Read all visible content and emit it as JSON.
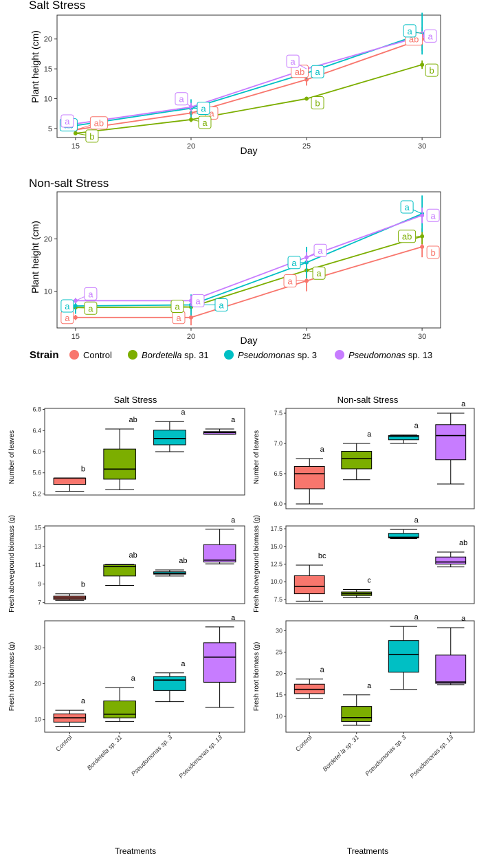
{
  "chart_data": [
    {
      "type": "line",
      "title": "Salt Stress",
      "xlabel": "Day",
      "ylabel": "Plant height (cm)",
      "xlim": [
        14.2,
        30.8
      ],
      "ylim": [
        3.5,
        24
      ],
      "xticks": [
        15,
        20,
        25,
        30
      ],
      "yticks": [
        5,
        10,
        15,
        20
      ],
      "series": [
        {
          "name": "Control",
          "color": "#F8766D",
          "x": [
            15,
            20,
            25,
            30
          ],
          "values": [
            4.8,
            7.6,
            13.2,
            20.0
          ],
          "err": [
            0.3,
            0.6,
            1.0,
            2.0
          ],
          "labels": [
            "ab",
            "a",
            "ab",
            "ab"
          ]
        },
        {
          "name": "Bordetella sp. 31",
          "color": "#7CAE00",
          "x": [
            15,
            20,
            25,
            30
          ],
          "values": [
            4.2,
            6.5,
            10.0,
            15.7
          ],
          "err": [
            0.2,
            0.4,
            0.3,
            0.7
          ],
          "labels": [
            "b",
            "a",
            "b",
            "b"
          ]
        },
        {
          "name": "Pseudomonas sp. 3",
          "color": "#00BFC4",
          "x": [
            15,
            20,
            25,
            30
          ],
          "values": [
            5.5,
            8.4,
            14.3,
            20.9
          ],
          "err": [
            0.3,
            1.5,
            1.0,
            3.5
          ],
          "labels": [
            "ab",
            "a",
            "a",
            "a"
          ]
        },
        {
          "name": "Pseudomonas sp. 13",
          "color": "#C77CFF",
          "x": [
            15,
            20,
            25,
            30
          ],
          "values": [
            5.8,
            8.6,
            15.0,
            20.5
          ],
          "err": [
            0.2,
            0.7,
            0.7,
            0.8
          ],
          "labels": [
            "a",
            "a",
            "a",
            "a"
          ]
        }
      ]
    },
    {
      "type": "line",
      "title": "Non-salt Stress",
      "xlabel": "Day",
      "ylabel": "Plant height (cm)",
      "xlim": [
        14.2,
        30.8
      ],
      "ylim": [
        3.0,
        29
      ],
      "xticks": [
        15,
        20,
        25,
        30
      ],
      "yticks": [
        10,
        20
      ],
      "series": [
        {
          "name": "Control",
          "color": "#F8766D",
          "x": [
            15,
            20,
            25,
            30
          ],
          "values": [
            5.0,
            5.0,
            12.0,
            18.5
          ],
          "err": [
            0.5,
            1.5,
            2.0,
            2.0
          ],
          "labels": [
            "a",
            "a",
            "a",
            "b"
          ]
        },
        {
          "name": "Bordetella sp. 31",
          "color": "#7CAE00",
          "x": [
            15,
            20,
            25,
            30
          ],
          "values": [
            6.9,
            7.0,
            14.0,
            20.5
          ],
          "err": [
            0.3,
            0.8,
            1.5,
            1.5
          ],
          "labels": [
            "a",
            "a",
            "a",
            "ab"
          ]
        },
        {
          "name": "Pseudomonas sp. 3",
          "color": "#00BFC4",
          "x": [
            15,
            20,
            25,
            30
          ],
          "values": [
            7.2,
            7.4,
            15.5,
            24.8
          ],
          "err": [
            1.5,
            2.0,
            3.0,
            3.5
          ],
          "labels": [
            "a",
            "a",
            "a",
            "a"
          ]
        },
        {
          "name": "Pseudomonas sp. 13",
          "color": "#C77CFF",
          "x": [
            15,
            20,
            25,
            30
          ],
          "values": [
            8.2,
            8.2,
            16.5,
            24.5
          ],
          "err": [
            0.5,
            1.0,
            1.0,
            1.5
          ],
          "labels": [
            "a",
            "a",
            "a",
            "a"
          ]
        }
      ]
    },
    {
      "type": "box",
      "title": "Salt Stress",
      "ylabel": "Number of leaves",
      "ylim": [
        5.18,
        6.82
      ],
      "yticks": [
        "5.2",
        "5.6",
        "6.0",
        "6.4",
        "6.8"
      ],
      "boxes": [
        {
          "min": 5.25,
          "q1": 5.38,
          "median": 5.5,
          "q3": 5.5,
          "max": 5.5,
          "label": "b"
        },
        {
          "min": 5.28,
          "q1": 5.48,
          "median": 5.67,
          "q3": 6.05,
          "max": 6.43,
          "label": "ab"
        },
        {
          "min": 6.0,
          "q1": 6.13,
          "median": 6.25,
          "q3": 6.41,
          "max": 6.57,
          "label": "a"
        },
        {
          "min": 6.33,
          "q1": 6.33,
          "median": 6.36,
          "q3": 6.38,
          "max": 6.43,
          "label": "a"
        }
      ]
    },
    {
      "type": "box",
      "title": "Non-salt Stress",
      "ylabel": "Number of leaves",
      "ylim": [
        5.92,
        7.58
      ],
      "yticks": [
        "6.0",
        "6.5",
        "7.0",
        "7.5"
      ],
      "boxes": [
        {
          "min": 6.0,
          "q1": 6.25,
          "median": 6.5,
          "q3": 6.62,
          "max": 6.75,
          "label": "a"
        },
        {
          "min": 6.4,
          "q1": 6.58,
          "median": 6.75,
          "q3": 6.87,
          "max": 7.0,
          "label": "a"
        },
        {
          "min": 7.0,
          "q1": 7.06,
          "median": 7.12,
          "q3": 7.13,
          "max": 7.14,
          "label": "a"
        },
        {
          "min": 6.33,
          "q1": 6.73,
          "median": 7.13,
          "q3": 7.31,
          "max": 7.5,
          "label": "a"
        }
      ]
    },
    {
      "type": "box",
      "ylabel": "Fresh aboveground biomass (g)",
      "ylim": [
        6.9,
        15.2
      ],
      "yticks": [
        "7",
        "9",
        "11",
        "13",
        "15"
      ],
      "boxes": [
        {
          "min": 7.25,
          "q1": 7.35,
          "median": 7.5,
          "q3": 7.7,
          "max": 7.95,
          "label": "b"
        },
        {
          "min": 8.85,
          "q1": 9.85,
          "median": 10.85,
          "q3": 11.05,
          "max": 11.1,
          "label": "ab"
        },
        {
          "min": 9.85,
          "q1": 10.05,
          "median": 10.15,
          "q3": 10.3,
          "max": 10.5,
          "label": "ab"
        },
        {
          "min": 11.15,
          "q1": 11.35,
          "median": 11.55,
          "q3": 13.2,
          "max": 14.85,
          "label": "a"
        }
      ]
    },
    {
      "type": "box",
      "ylabel": "Fresh aboveground biomass (g)",
      "ylim": [
        6.9,
        17.9
      ],
      "yticks": [
        "7.5",
        "10.0",
        "12.5",
        "15.0",
        "17.5"
      ],
      "boxes": [
        {
          "min": 7.25,
          "q1": 8.3,
          "median": 9.35,
          "q3": 10.85,
          "max": 12.35,
          "label": "bc"
        },
        {
          "min": 7.75,
          "q1": 8.05,
          "median": 8.3,
          "q3": 8.55,
          "max": 8.9,
          "label": "c"
        },
        {
          "min": 16.1,
          "q1": 16.2,
          "median": 16.3,
          "q3": 16.85,
          "max": 17.4,
          "label": "a"
        },
        {
          "min": 12.1,
          "q1": 12.5,
          "median": 12.8,
          "q3": 13.5,
          "max": 14.2,
          "label": "ab"
        }
      ]
    },
    {
      "type": "box",
      "ylabel": "Fresh root biomass (g)",
      "xlabel": "Treatments",
      "categories": [
        "Control",
        "Bordetella sp. 31",
        "Pseudomonas sp. 3",
        "Pseudomonas sp. 13"
      ],
      "ylim": [
        6.5,
        37.5
      ],
      "yticks": [
        "10",
        "20",
        "30"
      ],
      "boxes": [
        {
          "min": 8.1,
          "q1": 9.3,
          "median": 10.5,
          "q3": 11.6,
          "max": 12.6,
          "label": "a"
        },
        {
          "min": 9.5,
          "q1": 10.5,
          "median": 11.5,
          "q3": 15.2,
          "max": 18.9,
          "label": "a"
        },
        {
          "min": 15.0,
          "q1": 18.1,
          "median": 21.0,
          "q3": 22.0,
          "max": 23.0,
          "label": "a"
        },
        {
          "min": 13.4,
          "q1": 20.4,
          "median": 27.4,
          "q3": 31.4,
          "max": 35.8,
          "label": "a"
        }
      ]
    },
    {
      "type": "box",
      "ylabel": "Fresh root biomass (g)",
      "xlabel": "Treatments",
      "categories": [
        "Control",
        "Bordetella sp. 31",
        "Pseudomonas sp. 3",
        "Pseudomonas sp. 13"
      ],
      "category_display": [
        "Control",
        "Bordetel   la sp. 31",
        "Pseudomonas   sp. 3",
        "Pseudomonas   sp. 13"
      ],
      "ylim": [
        6.3,
        32.3
      ],
      "yticks": [
        "10",
        "15",
        "20",
        "25",
        "30"
      ],
      "boxes": [
        {
          "min": 14.2,
          "q1": 15.3,
          "median": 16.3,
          "q3": 17.5,
          "max": 18.7,
          "label": "a"
        },
        {
          "min": 7.9,
          "q1": 8.8,
          "median": 9.7,
          "q3": 12.3,
          "max": 15.0,
          "label": "a"
        },
        {
          "min": 16.3,
          "q1": 20.3,
          "median": 24.4,
          "q3": 27.7,
          "max": 31.0,
          "label": "a"
        },
        {
          "min": 17.4,
          "q1": 17.7,
          "median": 18.0,
          "q3": 24.3,
          "max": 30.7,
          "label": "a"
        }
      ]
    }
  ],
  "legend": {
    "title": "Strain",
    "items": [
      {
        "name": "Control",
        "color": "#F8766D"
      },
      {
        "name_italic": "Bordetella",
        "name_rest": " sp. 31",
        "color": "#7CAE00"
      },
      {
        "name_italic": "Pseudomonas",
        "name_rest": " sp. 3",
        "color": "#00BFC4"
      },
      {
        "name_italic": "Pseudomonas",
        "name_rest": " sp. 13",
        "color": "#C77CFF"
      }
    ]
  }
}
